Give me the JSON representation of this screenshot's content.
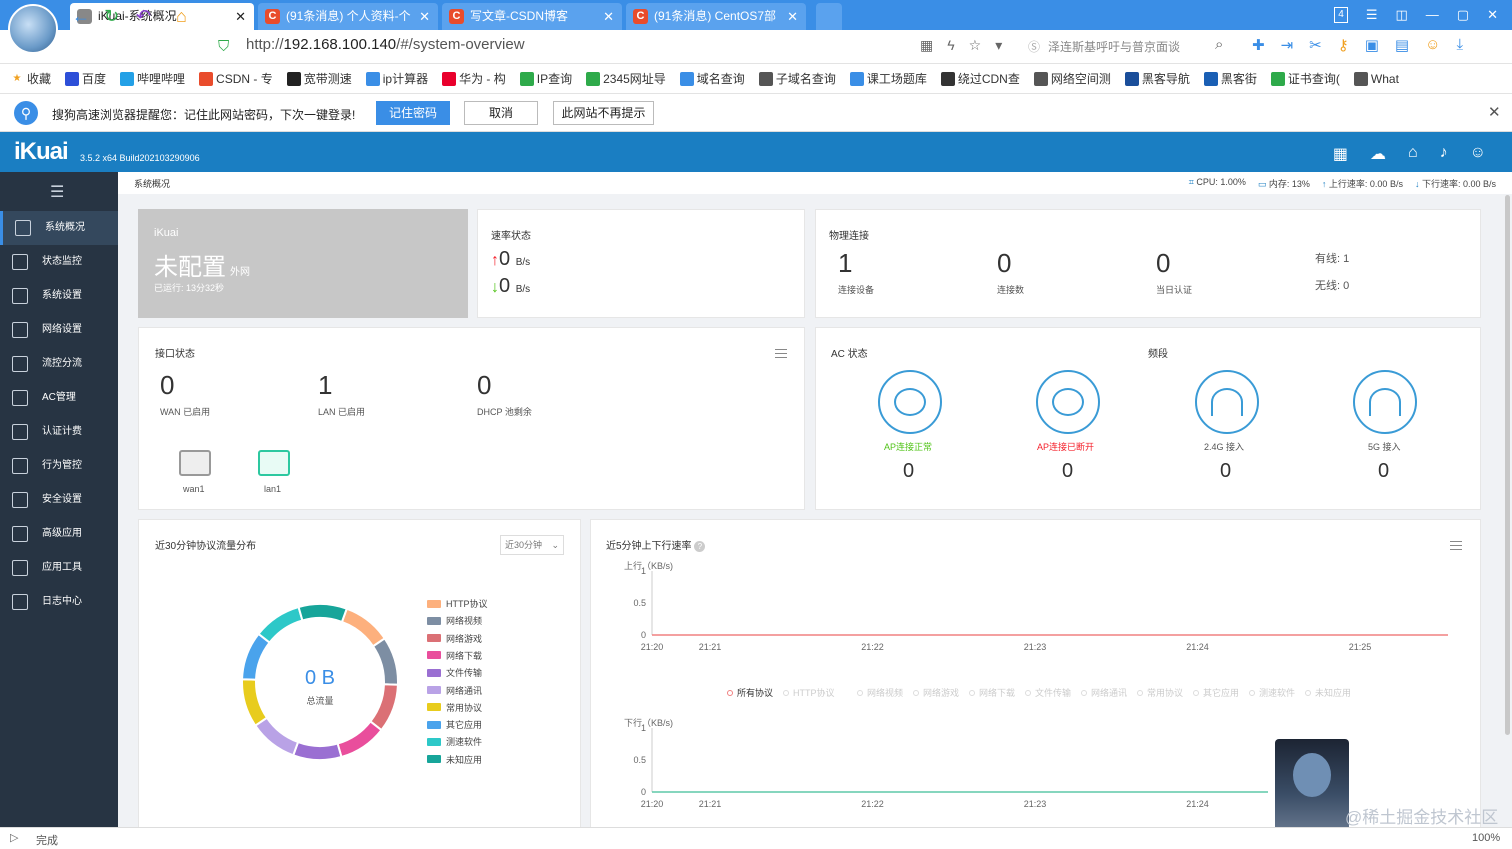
{
  "browser": {
    "tabs": [
      {
        "label": "iKuai-系统概况",
        "active": true
      },
      {
        "label": "(91条消息) 个人资料-个",
        "active": false
      },
      {
        "label": "写文章-CSDN博客",
        "active": false
      },
      {
        "label": "(91条消息) CentOS7部",
        "active": false
      }
    ],
    "tab_count": "4",
    "url_prefix": "http://",
    "url_host": "192.168.100.140",
    "url_path": "/#/system-overview",
    "search_placeholder": "泽连斯基呼吁与普京面谈",
    "bookmarks": [
      "收藏",
      "百度",
      "哔哩哔哩",
      "CSDN - 专",
      "宽带测速",
      "ip计算器",
      "华为 - 构",
      "IP查询",
      "2345网址导",
      "域名查询",
      "子域名查询",
      "课工场题库",
      "绕过CDN查",
      "网络空间测",
      "黑客导航",
      "黑客街",
      "证书查询(",
      "What"
    ],
    "password_prompt": "搜狗高速浏览器提醒您：记住此网站密码，下次一键登录!",
    "btn_remember": "记住密码",
    "btn_cancel": "取消",
    "btn_never": "此网站不再提示",
    "status": "完成",
    "zoom": "100%",
    "watermark": "@稀土掘金技术社区"
  },
  "app": {
    "logo": "iKuai",
    "version": "3.5.2 x64 Build202103290906",
    "breadcrumb": "系统概况",
    "cpu": "CPU: 1.00%",
    "mem": "内存: 13%",
    "up": "上行速率: 0.00 B/s",
    "down": "下行速率: 0.00 B/s",
    "sidebar": [
      "系统概况",
      "状态监控",
      "系统设置",
      "网络设置",
      "流控分流",
      "AC管理",
      "认证计费",
      "行为管控",
      "安全设置",
      "高级应用",
      "应用工具",
      "日志中心"
    ]
  },
  "overview": {
    "brand": "iKuai",
    "state": "未配置",
    "state_suffix": "外网",
    "uptime": "已运行: 13分32秒",
    "rate_title": "速率状态",
    "rate_up": "0",
    "rate_down": "0",
    "rate_unit": "B/s",
    "phys_title": "物理连接",
    "phys": [
      {
        "value": "1",
        "label": "连接设备"
      },
      {
        "value": "0",
        "label": "连接数"
      },
      {
        "value": "0",
        "label": "当日认证"
      }
    ],
    "wired": "有线: 1",
    "wireless": "无线: 0",
    "iface_title": "接口状态",
    "iface": [
      {
        "value": "0",
        "label": "WAN 已启用"
      },
      {
        "value": "1",
        "label": "LAN 已启用"
      },
      {
        "value": "0",
        "label": "DHCP 池剩余"
      }
    ],
    "ports": [
      "wan1",
      "lan1"
    ],
    "ac_title": "AC 状态",
    "band_title": "频段",
    "ac": [
      {
        "label": "AP连接正常",
        "value": "0",
        "color": "#52c41a"
      },
      {
        "label": "AP连接已断开",
        "value": "0",
        "color": "#f5222d"
      },
      {
        "label": "2.4G 接入",
        "value": "0",
        "color": "#333"
      },
      {
        "label": "5G 接入",
        "value": "0",
        "color": "#333"
      }
    ],
    "proto_title": "近30分钟协议流量分布",
    "proto_select": "近30分钟",
    "total_value": "0 B",
    "total_label": "总流量",
    "legend": [
      {
        "name": "HTTP协议",
        "color": "#fdb07d"
      },
      {
        "name": "网络视频",
        "color": "#7d8ea3"
      },
      {
        "name": "网络游戏",
        "color": "#db7075"
      },
      {
        "name": "网络下载",
        "color": "#e94e9c"
      },
      {
        "name": "文件传输",
        "color": "#9a6fd2"
      },
      {
        "name": "网络通讯",
        "color": "#b9a2e6"
      },
      {
        "name": "常用协议",
        "color": "#e8cc1d"
      },
      {
        "name": "其它应用",
        "color": "#4aa3ec"
      },
      {
        "name": "测速软件",
        "color": "#2dc8c8"
      },
      {
        "name": "未知应用",
        "color": "#17a59a"
      }
    ],
    "rate_chart_title": "近5分钟上下行速率",
    "up_axis": "上行（KB/s)",
    "down_axis": "下行（KB/s)",
    "chart_legend": [
      "所有协议",
      "HTTP协议",
      "网络视频",
      "网络游戏",
      "网络下载",
      "文件传输",
      "网络通讯",
      "常用协议",
      "其它应用",
      "测速软件",
      "未知应用"
    ]
  },
  "chart_data": [
    {
      "type": "pie",
      "title": "近30分钟协议流量分布",
      "categories": [
        "HTTP协议",
        "网络视频",
        "网络游戏",
        "网络下载",
        "文件传输",
        "网络通讯",
        "常用协议",
        "其它应用",
        "测速软件",
        "未知应用"
      ],
      "values": [
        1,
        1,
        1,
        1,
        1,
        1,
        1,
        1,
        1,
        1
      ]
    },
    {
      "type": "line",
      "ylabel": "上行（KB/s)",
      "x": [
        "21:20",
        "21:21",
        "21:22",
        "21:23",
        "21:24",
        "21:25"
      ],
      "yticks": [
        "0",
        "0.5",
        "1"
      ],
      "series": [
        {
          "name": "所有协议",
          "values": [
            0,
            0,
            0,
            0,
            0,
            0
          ]
        }
      ],
      "ylim": [
        0,
        1
      ]
    },
    {
      "type": "line",
      "ylabel": "下行（KB/s)",
      "x": [
        "21:20",
        "21:21",
        "21:22",
        "21:23",
        "21:24"
      ],
      "yticks": [
        "0",
        "0.5",
        "1"
      ],
      "series": [
        {
          "name": "所有协议",
          "values": [
            0,
            0,
            0,
            0,
            0
          ]
        }
      ],
      "ylim": [
        0,
        1
      ]
    }
  ]
}
